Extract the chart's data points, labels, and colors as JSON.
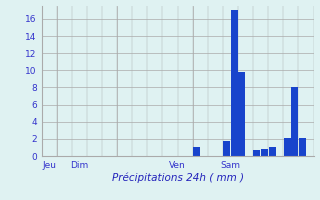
{
  "bar_values": [
    0,
    0,
    0,
    0,
    0,
    0,
    0,
    0,
    0,
    0,
    0,
    0,
    0,
    0,
    0,
    0,
    0,
    0,
    0,
    0,
    1.0,
    0,
    0,
    0,
    1.7,
    17.0,
    9.8,
    0,
    0.7,
    0.8,
    1.0,
    0,
    2.1,
    8.0,
    2.1,
    0
  ],
  "day_labels": [
    "Jeu",
    "Dim",
    "Ven",
    "Sam"
  ],
  "day_positions": [
    0.5,
    4.5,
    17.5,
    24.5
  ],
  "day_vlines": [
    1.5,
    9.5,
    19.5
  ],
  "bar_color": "#1844cc",
  "bg_color": "#dff2f2",
  "grid_color": "#aaaaaa",
  "xlabel": "Précipitations 24h ( mm )",
  "ylim": [
    0,
    17.5
  ],
  "yticks": [
    0,
    2,
    4,
    6,
    8,
    10,
    12,
    14,
    16
  ],
  "xlabel_color": "#2222bb",
  "tick_color": "#3333cc",
  "tick_fontsize": 6.5,
  "xlabel_fontsize": 7.5,
  "figsize": [
    3.2,
    2.0
  ],
  "dpi": 100
}
